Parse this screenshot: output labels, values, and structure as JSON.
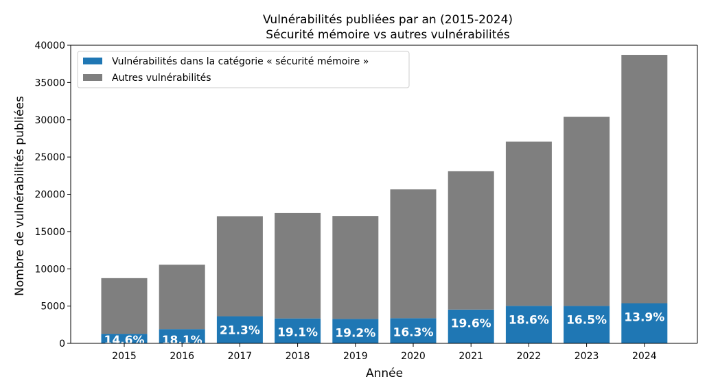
{
  "chart_data": {
    "type": "bar",
    "stacked": true,
    "title": "Vulnérabilités publiées par an (2015-2024)",
    "subtitle": "Sécurité mémoire vs autres vulnérabilités",
    "xlabel": "Année",
    "ylabel": "Nombre de vulnérabilités publiées",
    "ylim": [
      0,
      40000
    ],
    "yticks": [
      0,
      5000,
      10000,
      15000,
      20000,
      25000,
      30000,
      35000,
      40000
    ],
    "categories": [
      "2015",
      "2016",
      "2017",
      "2018",
      "2019",
      "2020",
      "2021",
      "2022",
      "2023",
      "2024"
    ],
    "series": [
      {
        "name": "Vulnérabilités dans la catégorie « sécurité mémoire »",
        "color": "#1f77b4",
        "values": [
          1280,
          1910,
          3630,
          3340,
          3280,
          3370,
          4530,
          5030,
          5020,
          5380
        ]
      },
      {
        "name": "Autres vulnérabilités",
        "color": "#7f7f7f",
        "values": [
          7470,
          8640,
          13430,
          14140,
          13810,
          17290,
          18560,
          22040,
          25370,
          33330
        ]
      }
    ],
    "totals": [
      8750,
      10550,
      17060,
      17480,
      17090,
      20660,
      23090,
      27070,
      30390,
      38710
    ],
    "percent_labels": [
      "14.6%",
      "18.1%",
      "21.3%",
      "19.1%",
      "19.2%",
      "16.3%",
      "19.6%",
      "18.6%",
      "16.5%",
      "13.9%"
    ],
    "legend_position": "upper-left",
    "grid": false
  }
}
